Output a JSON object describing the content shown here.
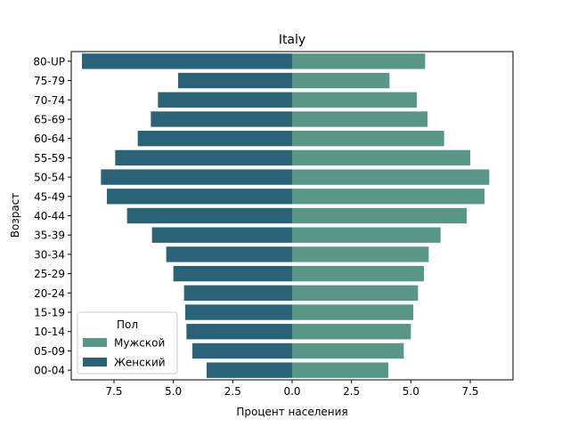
{
  "chart_data": {
    "type": "bar",
    "orientation": "horizontal",
    "title": "Italy",
    "xlabel": "Процент населения",
    "ylabel": "Возраст",
    "xlim": [
      -9.3,
      9.3
    ],
    "x_ticks": [
      -7.5,
      -5.0,
      -2.5,
      0.0,
      2.5,
      5.0,
      7.5
    ],
    "x_tick_labels": [
      "7.5",
      "5.0",
      "2.5",
      "0.0",
      "2.5",
      "5.0",
      "7.5"
    ],
    "categories": [
      "80-UP",
      "75-79",
      "70-74",
      "65-69",
      "60-64",
      "55-59",
      "50-54",
      "45-49",
      "40-44",
      "35-39",
      "30-34",
      "25-29",
      "20-24",
      "15-19",
      "10-14",
      "05-09",
      "00-04"
    ],
    "series": [
      {
        "name": "Мужской",
        "color": "#5a9688",
        "values": [
          5.6,
          4.1,
          5.25,
          5.7,
          6.4,
          7.5,
          8.3,
          8.1,
          7.35,
          6.25,
          5.75,
          5.55,
          5.3,
          5.1,
          5.0,
          4.7,
          4.05
        ]
      },
      {
        "name": "Женский",
        "color": "#2a6278",
        "values": [
          -8.85,
          -4.8,
          -5.65,
          -5.95,
          -6.5,
          -7.45,
          -8.05,
          -7.8,
          -6.95,
          -5.9,
          -5.3,
          -5.0,
          -4.55,
          -4.5,
          -4.45,
          -4.2,
          -3.6
        ]
      }
    ],
    "legend": {
      "title": "Пол",
      "placement": "lower-left"
    },
    "grid": false
  }
}
